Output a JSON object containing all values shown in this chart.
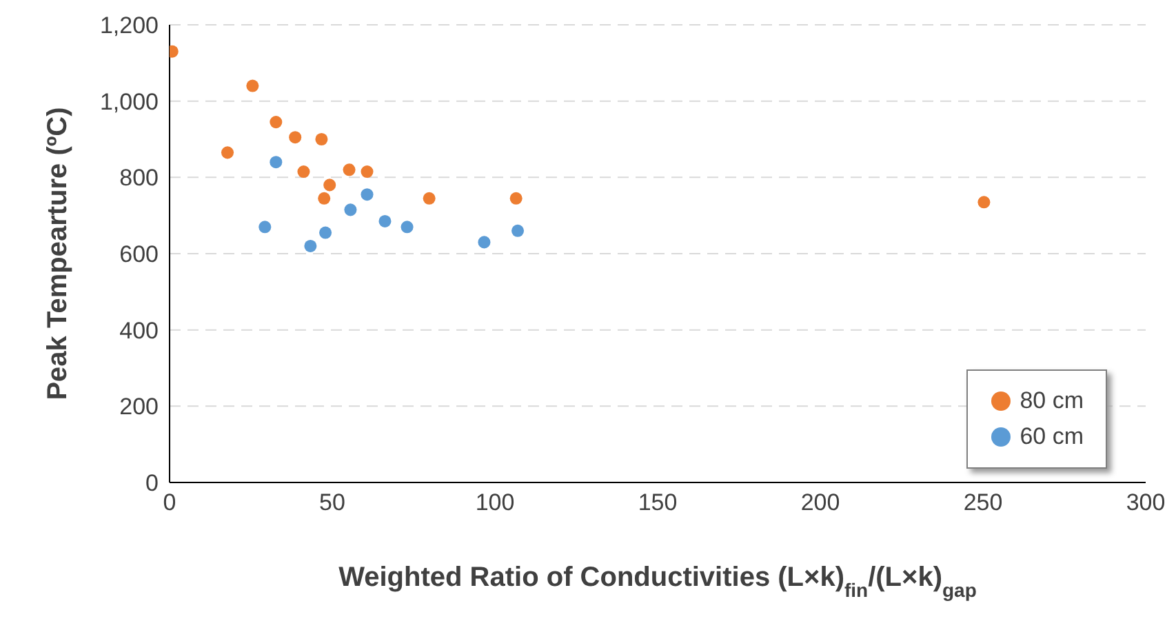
{
  "chart_data": {
    "type": "scatter",
    "xlabel": "Weighted Ratio of Conductivities (L×k)$_{fin}$/(L×k)$_{gap}$",
    "ylabel": "Peak Tempearture (ºC)",
    "xlim": [
      0,
      300
    ],
    "xticks": [
      0,
      50,
      100,
      150,
      200,
      250,
      300
    ],
    "ylim": [
      0,
      1200
    ],
    "yticks": [
      0,
      200,
      400,
      600,
      800,
      {
        "value": 1000,
        "label": "1,000"
      },
      {
        "value": 1200,
        "label": "1,200"
      }
    ],
    "grid": "y",
    "legend": "bottom right",
    "marker": "circle",
    "series": [
      {
        "name": "80 cm",
        "color": "#ed7d31",
        "x": [
          0.8,
          17.8,
          25.5,
          32.7,
          38.6,
          41.2,
          46.7,
          49.2,
          47.5,
          55.2,
          60.7,
          79.8,
          106.5,
          250.3
        ],
        "values": [
          1130,
          865,
          1040,
          945,
          905,
          815,
          900,
          780,
          745,
          820,
          815,
          745,
          745,
          735
        ]
      },
      {
        "name": "60 cm",
        "color": "#5b9bd5",
        "x": [
          32.7,
          29.3,
          43.3,
          47.9,
          55.6,
          60.7,
          66.2,
          73,
          96.7,
          107
        ],
        "values": [
          840,
          670,
          620,
          655,
          715,
          755,
          685,
          670,
          630,
          660
        ]
      }
    ]
  }
}
